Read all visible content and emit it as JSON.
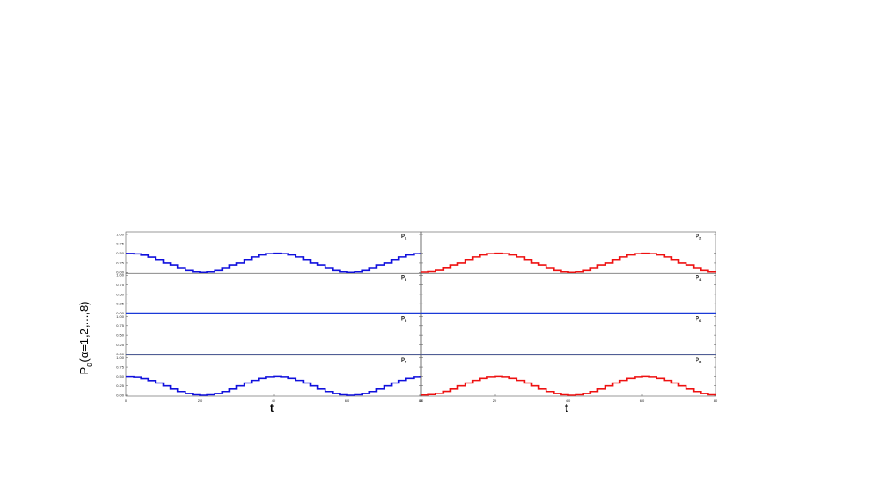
{
  "chart_data": {
    "type": "line",
    "ylabel": "P",
    "ylabel_sub": "α",
    "ylabel_rest": "(α=1,2,...,8)",
    "grid": false,
    "xlim": [
      0,
      80
    ],
    "ylim": [
      0,
      1.0
    ],
    "xticks": [
      0,
      20,
      40,
      60,
      80
    ],
    "yticks": [
      "0.00",
      "0.25",
      "0.50",
      "0.75",
      "1.00"
    ],
    "x": [
      0,
      2,
      4,
      6,
      8,
      10,
      12,
      14,
      16,
      18,
      20,
      22,
      24,
      26,
      28,
      30,
      32,
      34,
      36,
      38,
      40,
      42,
      44,
      46,
      48,
      50,
      52,
      54,
      56,
      58,
      60,
      62,
      64,
      66,
      68,
      70,
      72,
      74,
      76,
      78
    ],
    "panels": [
      {
        "label": "P",
        "sub": "1",
        "xlabel": "",
        "color": "#1010dd",
        "values": [
          0.494,
          0.482,
          0.446,
          0.392,
          0.327,
          0.25,
          0.173,
          0.103,
          0.048,
          0.012,
          0.0,
          0.012,
          0.048,
          0.103,
          0.173,
          0.25,
          0.327,
          0.397,
          0.452,
          0.488,
          0.5,
          0.488,
          0.452,
          0.397,
          0.327,
          0.25,
          0.173,
          0.103,
          0.048,
          0.012,
          0.0,
          0.012,
          0.048,
          0.103,
          0.173,
          0.25,
          0.327,
          0.397,
          0.452,
          0.488
        ]
      },
      {
        "label": "P",
        "sub": "2",
        "xlabel": "",
        "color": "#ee1111",
        "values": [
          0.006,
          0.018,
          0.054,
          0.108,
          0.173,
          0.25,
          0.327,
          0.397,
          0.452,
          0.488,
          0.5,
          0.488,
          0.452,
          0.397,
          0.327,
          0.25,
          0.173,
          0.103,
          0.048,
          0.012,
          0.0,
          0.012,
          0.048,
          0.103,
          0.173,
          0.25,
          0.327,
          0.397,
          0.452,
          0.488,
          0.5,
          0.488,
          0.452,
          0.397,
          0.327,
          0.25,
          0.173,
          0.103,
          0.048,
          0.012
        ]
      },
      {
        "label": "P",
        "sub": "3",
        "xlabel": "",
        "color": "#1a3ad8",
        "values": [
          0,
          0,
          0,
          0,
          0,
          0,
          0,
          0,
          0,
          0,
          0,
          0,
          0,
          0,
          0,
          0,
          0,
          0,
          0,
          0,
          0,
          0,
          0,
          0,
          0,
          0,
          0,
          0,
          0,
          0,
          0,
          0,
          0,
          0,
          0,
          0,
          0,
          0,
          0,
          0
        ]
      },
      {
        "label": "P",
        "sub": "4",
        "xlabel": "",
        "color": "#1a3ad8",
        "values": [
          0,
          0,
          0,
          0,
          0,
          0,
          0,
          0,
          0,
          0,
          0,
          0,
          0,
          0,
          0,
          0,
          0,
          0,
          0,
          0,
          0,
          0,
          0,
          0,
          0,
          0,
          0,
          0,
          0,
          0,
          0,
          0,
          0,
          0,
          0,
          0,
          0,
          0,
          0,
          0
        ]
      },
      {
        "label": "P",
        "sub": "5",
        "xlabel": "",
        "color": "#4a6ae8",
        "values": [
          0,
          0,
          0,
          0,
          0,
          0,
          0,
          0,
          0,
          0,
          0,
          0,
          0,
          0,
          0,
          0,
          0,
          0,
          0,
          0,
          0,
          0,
          0,
          0,
          0,
          0,
          0,
          0,
          0,
          0,
          0,
          0,
          0,
          0,
          0,
          0,
          0,
          0,
          0,
          0
        ]
      },
      {
        "label": "P",
        "sub": "6",
        "xlabel": "",
        "color": "#4a6ae8",
        "values": [
          0,
          0,
          0,
          0,
          0,
          0,
          0,
          0,
          0,
          0,
          0,
          0,
          0,
          0,
          0,
          0,
          0,
          0,
          0,
          0,
          0,
          0,
          0,
          0,
          0,
          0,
          0,
          0,
          0,
          0,
          0,
          0,
          0,
          0,
          0,
          0,
          0,
          0,
          0,
          0
        ]
      },
      {
        "label": "P",
        "sub": "7",
        "xlabel": "t",
        "color": "#1010dd",
        "values": [
          0.494,
          0.482,
          0.446,
          0.392,
          0.327,
          0.25,
          0.173,
          0.103,
          0.048,
          0.012,
          0.0,
          0.012,
          0.048,
          0.103,
          0.173,
          0.25,
          0.327,
          0.397,
          0.452,
          0.488,
          0.5,
          0.488,
          0.452,
          0.397,
          0.327,
          0.25,
          0.173,
          0.103,
          0.048,
          0.012,
          0.0,
          0.012,
          0.048,
          0.103,
          0.173,
          0.25,
          0.327,
          0.397,
          0.452,
          0.488
        ]
      },
      {
        "label": "P",
        "sub": "8",
        "xlabel": "t",
        "color": "#ee1111",
        "values": [
          0.006,
          0.018,
          0.054,
          0.108,
          0.173,
          0.25,
          0.327,
          0.397,
          0.452,
          0.488,
          0.5,
          0.488,
          0.452,
          0.397,
          0.327,
          0.25,
          0.173,
          0.103,
          0.048,
          0.012,
          0.0,
          0.012,
          0.048,
          0.103,
          0.173,
          0.25,
          0.327,
          0.397,
          0.452,
          0.488,
          0.5,
          0.488,
          0.452,
          0.397,
          0.327,
          0.25,
          0.173,
          0.103,
          0.048,
          0.012
        ]
      }
    ]
  }
}
